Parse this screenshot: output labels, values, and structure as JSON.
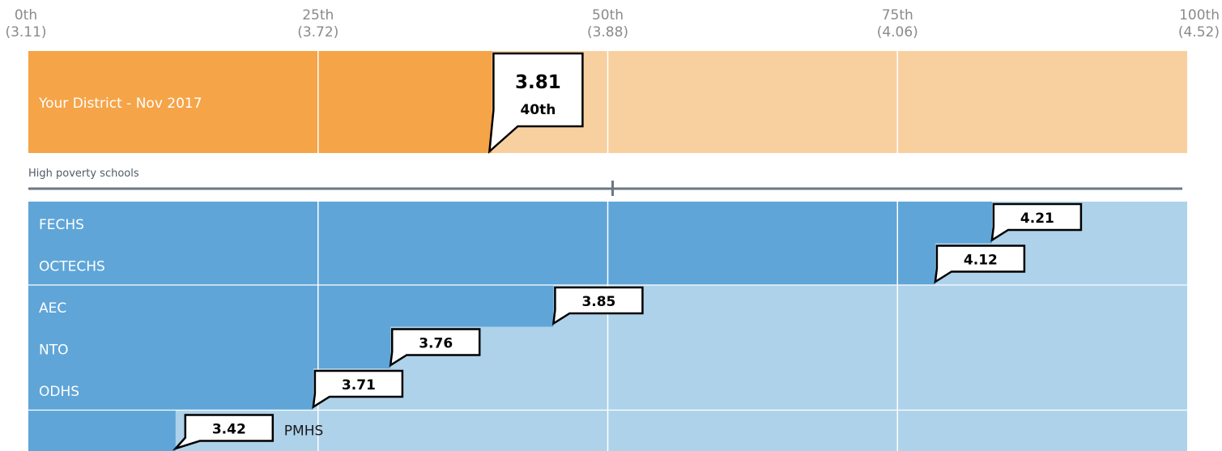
{
  "chart_data": {
    "type": "bar",
    "orientation": "horizontal",
    "axis": {
      "ticks": [
        {
          "percentile": 0,
          "label": "0th",
          "value_label": "(3.11)",
          "value": 3.11
        },
        {
          "percentile": 25,
          "label": "25th",
          "value_label": "(3.72)",
          "value": 3.72
        },
        {
          "percentile": 50,
          "label": "50th",
          "value_label": "(3.88)",
          "value": 3.88
        },
        {
          "percentile": 75,
          "label": "75th",
          "value_label": "(4.06)",
          "value": 4.06
        },
        {
          "percentile": 100,
          "label": "100th",
          "value_label": "(4.52)",
          "value": 4.52
        }
      ]
    },
    "district": {
      "label": "Your District - Nov 2017",
      "value": 3.81,
      "value_label": "3.81",
      "percentile": 40,
      "percentile_label": "40th"
    },
    "section_label": "High poverty schools",
    "schools": [
      {
        "name": "FECHS",
        "value": 4.21,
        "value_label": "4.21"
      },
      {
        "name": "OCTECHS",
        "value": 4.12,
        "value_label": "4.12"
      },
      {
        "name": "AEC",
        "value": 3.85,
        "value_label": "3.85"
      },
      {
        "name": "NTO",
        "value": 3.76,
        "value_label": "3.76"
      },
      {
        "name": "ODHS",
        "value": 3.71,
        "value_label": "3.71"
      },
      {
        "name": "PMHS",
        "value": 3.42,
        "value_label": "3.42"
      }
    ],
    "colors": {
      "district_fill": "#f5a448",
      "district_bg": "#f8d0a0",
      "school_fill": "#5fa5d8",
      "school_bg": "#aed2ea",
      "axis_line": "#6b7785"
    }
  }
}
